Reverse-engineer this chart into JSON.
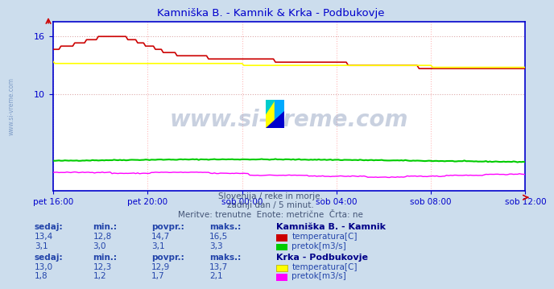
{
  "title": "Kamniška B. - Kamnik & Krka - Podbukovje",
  "title_color": "#0000cc",
  "bg_color": "#ccdded",
  "plot_bg_color": "#ffffff",
  "grid_color_h": "#ddaaaa",
  "grid_color_v": "#ffbbbb",
  "axis_color": "#0000cc",
  "x_ticks_labels": [
    "pet 16:00",
    "pet 20:00",
    "sob 00:00",
    "sob 04:00",
    "sob 08:00",
    "sob 12:00"
  ],
  "x_ticks_positions": [
    0,
    48,
    96,
    144,
    192,
    240
  ],
  "ylim": [
    0,
    17.5
  ],
  "ytick_positions": [
    10,
    16
  ],
  "n_points": 241,
  "watermark": "www.si-vreme.com",
  "subtitle1": "Slovenija / reke in morje.",
  "subtitle2": "zadnji dan / 5 minut.",
  "subtitle3": "Meritve: trenutne  Enote: metrične  Črta: ne",
  "legend": {
    "station1": "Kamniška B. - Kamnik",
    "station1_temp_label": "temperatura[C]",
    "station1_flow_label": "pretok[m3/s]",
    "station1_temp_color": "#cc0000",
    "station1_flow_color": "#00cc00",
    "station2": "Krka - Podbukovje",
    "station2_temp_label": "temperatura[C]",
    "station2_flow_label": "pretok[m3/s]",
    "station2_temp_color": "#ffff00",
    "station2_flow_color": "#ff00ff"
  },
  "table": {
    "headers": [
      "sedaj:",
      "min.:",
      "povpr.:",
      "maks.:"
    ],
    "station1_temp": [
      13.4,
      12.8,
      14.7,
      16.5
    ],
    "station1_flow": [
      3.1,
      3.0,
      3.1,
      3.3
    ],
    "station2_temp": [
      13.0,
      12.3,
      12.9,
      13.7
    ],
    "station2_flow": [
      1.8,
      1.2,
      1.7,
      2.1
    ]
  },
  "logo_colors": {
    "yellow": "#ffff00",
    "blue_light": "#00aaff",
    "blue_dark": "#0000cc",
    "cyan": "#00cccc"
  }
}
